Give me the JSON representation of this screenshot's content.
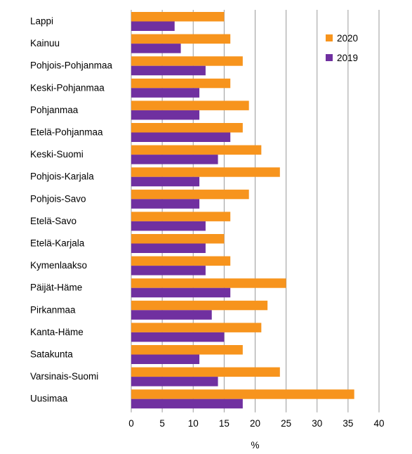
{
  "chart_data": {
    "type": "bar",
    "orientation": "horizontal",
    "categories": [
      "Lappi",
      "Kainuu",
      "Pohjois-Pohjanmaa",
      "Keski-Pohjanmaa",
      "Pohjanmaa",
      "Etelä-Pohjanmaa",
      "Keski-Suomi",
      "Pohjois-Karjala",
      "Pohjois-Savo",
      "Etelä-Savo",
      "Etelä-Karjala",
      "Kymenlaakso",
      "Päijät-Häme",
      "Pirkanmaa",
      "Kanta-Häme",
      "Satakunta",
      "Varsinais-Suomi",
      "Uusimaa"
    ],
    "series": [
      {
        "name": "2020",
        "color": "#f7941d",
        "values": [
          15,
          16,
          18,
          16,
          19,
          18,
          21,
          24,
          19,
          16,
          15,
          16,
          25,
          22,
          21,
          18,
          24,
          36
        ]
      },
      {
        "name": "2019",
        "color": "#7030a0",
        "values": [
          7,
          8,
          12,
          11,
          11,
          16,
          14,
          11,
          11,
          12,
          12,
          12,
          16,
          13,
          15,
          11,
          14,
          18
        ]
      }
    ],
    "xlabel": "%",
    "xlim": [
      0,
      40
    ],
    "xticks": [
      0,
      5,
      10,
      15,
      20,
      25,
      30,
      35,
      40
    ],
    "grid": "vertical",
    "legend_position": "top-right"
  }
}
